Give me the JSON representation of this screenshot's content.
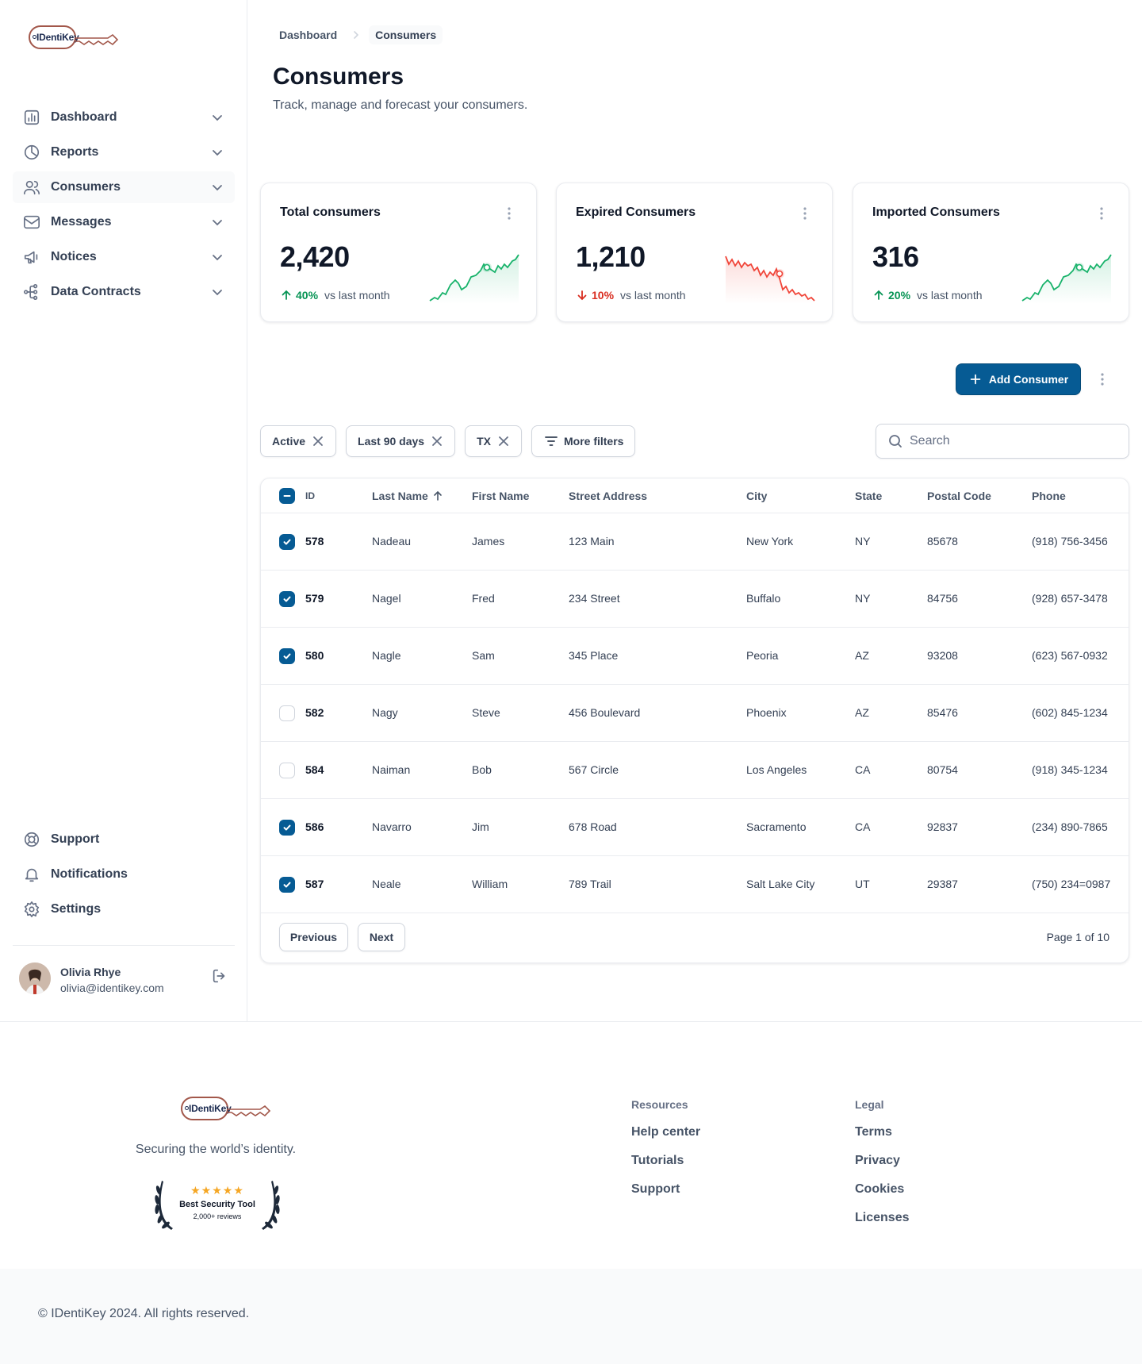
{
  "brand": {
    "name": "IDentiKey"
  },
  "sidebar": {
    "items": [
      {
        "label": "Dashboard",
        "icon": "bar-chart-icon"
      },
      {
        "label": "Reports",
        "icon": "pie-chart-icon"
      },
      {
        "label": "Consumers",
        "icon": "users-icon"
      },
      {
        "label": "Messages",
        "icon": "mail-icon"
      },
      {
        "label": "Notices",
        "icon": "megaphone-icon"
      },
      {
        "label": "Data Contracts",
        "icon": "dataflow-icon"
      }
    ],
    "bottom_items": [
      {
        "label": "Support",
        "icon": "life-buoy-icon"
      },
      {
        "label": "Notifications",
        "icon": "bell-icon"
      },
      {
        "label": "Settings",
        "icon": "gear-icon"
      }
    ],
    "user": {
      "name": "Olivia Rhye",
      "email": "olivia@identikey.com"
    }
  },
  "breadcrumb": {
    "parent": "Dashboard",
    "current": "Consumers"
  },
  "page": {
    "title": "Consumers",
    "subtitle": "Track, manage and forecast your consumers."
  },
  "cards": [
    {
      "title": "Total consumers",
      "value": "2,420",
      "pct": "40%",
      "direction": "up",
      "label": "vs last month",
      "color": "#079455"
    },
    {
      "title": "Expired Consumers",
      "value": "1,210",
      "pct": "10%",
      "direction": "down",
      "label": "vs last month",
      "color": "#d92d20"
    },
    {
      "title": "Imported Consumers",
      "value": "316",
      "pct": "20%",
      "direction": "up",
      "label": "vs last month",
      "color": "#079455"
    }
  ],
  "actions": {
    "add_label": "Add Consumer"
  },
  "filters": {
    "chips": [
      "Active",
      "Last 90 days",
      "TX"
    ],
    "more_label": "More filters",
    "search_placeholder": "Search"
  },
  "table": {
    "columns": [
      "ID",
      "Last Name",
      "First Name",
      "Street Address",
      "City",
      "State",
      "Postal Code",
      "Phone"
    ],
    "rows": [
      {
        "checked": true,
        "id": "578",
        "last": "Nadeau",
        "first": "James",
        "street": "123 Main",
        "city": "New York",
        "state": "NY",
        "postal": "85678",
        "phone": "(918) 756-3456"
      },
      {
        "checked": true,
        "id": "579",
        "last": "Nagel",
        "first": "Fred",
        "street": "234 Street",
        "city": "Buffalo",
        "state": "NY",
        "postal": "84756",
        "phone": "(928) 657-3478"
      },
      {
        "checked": true,
        "id": "580",
        "last": "Nagle",
        "first": "Sam",
        "street": "345 Place",
        "city": "Peoria",
        "state": "AZ",
        "postal": "93208",
        "phone": "(623) 567-0932"
      },
      {
        "checked": false,
        "id": "582",
        "last": "Nagy",
        "first": "Steve",
        "street": "456 Boulevard",
        "city": "Phoenix",
        "state": "AZ",
        "postal": "85476",
        "phone": "(602) 845-1234"
      },
      {
        "checked": false,
        "id": "584",
        "last": "Naiman",
        "first": "Bob",
        "street": "567 Circle",
        "city": "Los Angeles",
        "state": "CA",
        "postal": "80754",
        "phone": "(918) 345-1234"
      },
      {
        "checked": true,
        "id": "586",
        "last": "Navarro",
        "first": "Jim",
        "street": "678 Road",
        "city": "Sacramento",
        "state": "CA",
        "postal": "92837",
        "phone": "(234) 890-7865"
      },
      {
        "checked": true,
        "id": "587",
        "last": "Neale",
        "first": "William",
        "street": "789 Trail",
        "city": "Salt Lake City",
        "state": "UT",
        "postal": "29387",
        "phone": "(750) 234=0987"
      }
    ],
    "pagination": {
      "previous": "Previous",
      "next": "Next",
      "info": "Page 1 of 10"
    }
  },
  "footer": {
    "tagline": "Securing the world’s identity.",
    "badge": {
      "stars": "★★★★★",
      "title": "Best Security Tool",
      "sub": "2,000+ reviews"
    },
    "resources": {
      "title": "Resources",
      "links": [
        "Help center",
        "Tutorials",
        "Support"
      ]
    },
    "legal": {
      "title": "Legal",
      "links": [
        "Terms",
        "Privacy",
        "Cookies",
        "Licenses"
      ]
    },
    "copyright": "© IDentiKey 2024. All rights reserved."
  }
}
